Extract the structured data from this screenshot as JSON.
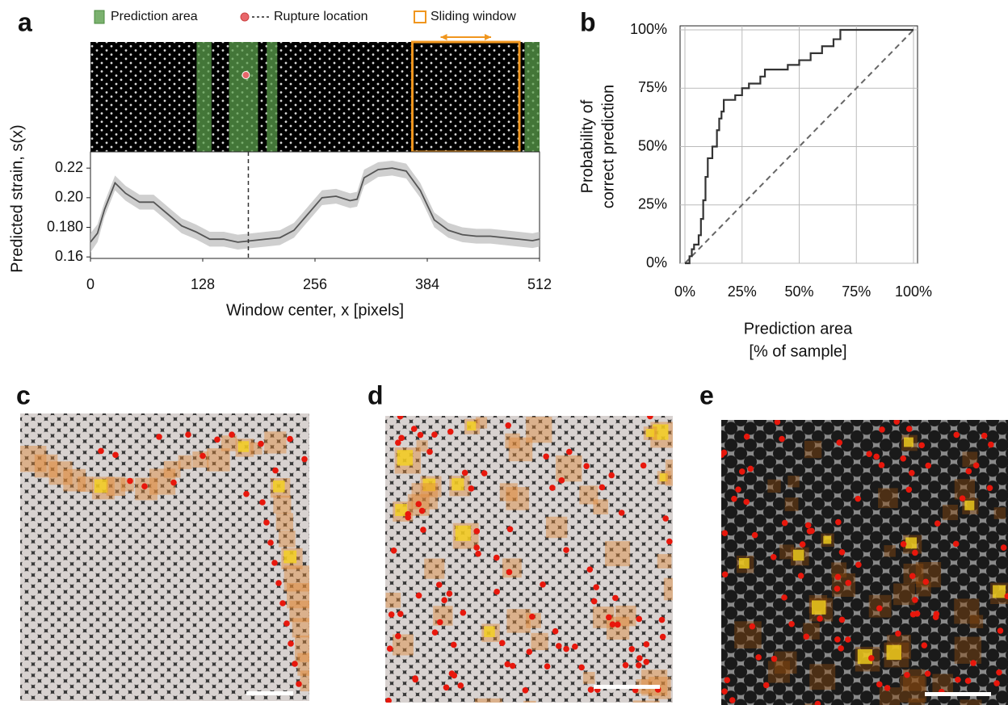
{
  "chart_data": [
    {
      "type": "line",
      "label": "a",
      "xlabel": "Window center, x [pixels]",
      "ylabel": "Predicted strain, s(x)",
      "x": [
        0,
        8,
        16,
        28,
        40,
        56,
        72,
        88,
        104,
        120,
        136,
        152,
        168,
        184,
        200,
        216,
        232,
        248,
        264,
        280,
        296,
        304,
        312,
        328,
        344,
        360,
        376,
        392,
        408,
        424,
        440,
        456,
        472,
        488,
        504,
        512
      ],
      "series": [
        {
          "color": "#555555",
          "values": [
            0.17,
            0.176,
            0.192,
            0.21,
            0.203,
            0.197,
            0.197,
            0.189,
            0.181,
            0.177,
            0.172,
            0.172,
            0.17,
            0.171,
            0.172,
            0.173,
            0.178,
            0.189,
            0.2,
            0.201,
            0.198,
            0.199,
            0.2135,
            0.219,
            0.22,
            0.218,
            0.205,
            0.185,
            0.178,
            0.175,
            0.174,
            0.174,
            0.173,
            0.172,
            0.171,
            0.172
          ],
          "upper": [
            0.176,
            0.182,
            0.197,
            0.215,
            0.208,
            0.202,
            0.202,
            0.194,
            0.186,
            0.182,
            0.177,
            0.177,
            0.175,
            0.176,
            0.177,
            0.178,
            0.183,
            0.194,
            0.205,
            0.206,
            0.203,
            0.204,
            0.219,
            0.224,
            0.225,
            0.223,
            0.21,
            0.19,
            0.183,
            0.18,
            0.179,
            0.179,
            0.178,
            0.177,
            0.176,
            0.177
          ],
          "lower": [
            0.163,
            0.17,
            0.187,
            0.205,
            0.198,
            0.192,
            0.192,
            0.184,
            0.176,
            0.172,
            0.167,
            0.167,
            0.165,
            0.166,
            0.167,
            0.168,
            0.173,
            0.184,
            0.195,
            0.196,
            0.193,
            0.194,
            0.208,
            0.214,
            0.215,
            0.213,
            0.2,
            0.18,
            0.173,
            0.17,
            0.169,
            0.169,
            0.168,
            0.167,
            0.166,
            0.167
          ]
        }
      ],
      "xlim": [
        0,
        512
      ],
      "xticks": [
        0,
        128,
        256,
        384,
        512
      ],
      "ylim": [
        0.159,
        0.231
      ],
      "yticks": [
        0.16,
        {
          "value": 0.18,
          "label": "0.180"
        },
        {
          "value": 0.2,
          "label": "0.20"
        },
        0.22
      ],
      "prediction_area": {
        "label": "Prediction area",
        "color": "#5a9e4b",
        "spans": [
          [
            121,
            138
          ],
          [
            158,
            191
          ],
          [
            201,
            213
          ],
          [
            495,
            512
          ]
        ]
      },
      "rupture": {
        "label": "Rupture location",
        "color": "#e8666a",
        "x": 180
      },
      "sliding_window": {
        "label": "Sliding window",
        "color": "#f0961e",
        "span": [
          367,
          489
        ]
      }
    },
    {
      "type": "line",
      "label": "b",
      "xlabel": [
        "Prediction area",
        "[% of sample]"
      ],
      "ylabel": [
        "Probability of",
        "correct prediction"
      ],
      "series": [
        {
          "color": "#333333",
          "x": [
            0,
            2,
            2,
            3,
            3,
            4,
            4,
            6,
            6,
            7,
            7,
            8,
            8,
            9,
            9,
            10,
            10,
            12,
            12,
            14,
            14,
            15,
            15,
            16,
            16,
            17,
            17,
            22,
            22,
            25,
            25,
            28,
            28,
            33,
            33,
            35,
            35,
            45,
            45,
            50,
            50,
            55,
            55,
            60,
            60,
            65,
            65,
            68,
            68,
            100
          ],
          "values": [
            0,
            0,
            3,
            3,
            6,
            6,
            8,
            8,
            12,
            12,
            19,
            19,
            27,
            27,
            37,
            37,
            45,
            45,
            50,
            50,
            57,
            57,
            62,
            62,
            65,
            65,
            70,
            70,
            72,
            72,
            75,
            75,
            77,
            77,
            80,
            80,
            83,
            83,
            85,
            85,
            87,
            87,
            90,
            90,
            93,
            93,
            96,
            96,
            100,
            100
          ]
        }
      ],
      "reference": {
        "color": "#666666",
        "x": [
          0,
          100
        ],
        "values": [
          0,
          100
        ]
      },
      "xlim": [
        0,
        100
      ],
      "ylim": [
        0,
        100
      ],
      "grid": true,
      "xticks": [
        {
          "value": 0,
          "label": "0%"
        },
        {
          "value": 25,
          "label": "25%"
        },
        {
          "value": 50,
          "label": "50%"
        },
        {
          "value": 75,
          "label": "75%"
        },
        {
          "value": 100,
          "label": "100%"
        }
      ],
      "yticks": [
        {
          "value": 0,
          "label": "0%"
        },
        {
          "value": 25,
          "label": "25%"
        },
        {
          "value": 50,
          "label": "50%"
        },
        {
          "value": 75,
          "label": "75%"
        },
        {
          "value": 100,
          "label": "100%"
        }
      ]
    }
  ],
  "micrographs": [
    {
      "label": "c"
    },
    {
      "label": "d"
    },
    {
      "label": "e"
    }
  ]
}
